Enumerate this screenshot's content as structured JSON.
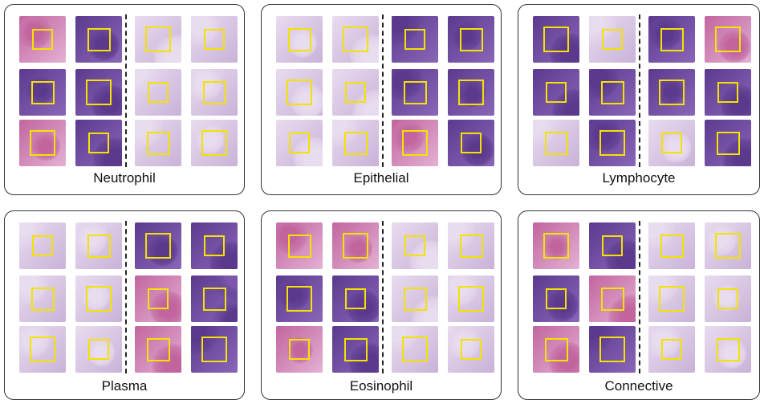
{
  "colors": {
    "box": "#f4e200",
    "panel_border": "#333333",
    "purple": "#6e4aa0",
    "pink": "#c97ab8",
    "pale": "#e6d7ec"
  },
  "panels": [
    {
      "label": "Neutrophil",
      "tones": [
        "pink",
        "purple",
        "pale",
        "pale",
        "purple",
        "purple",
        "pale",
        "pale",
        "pink",
        "purple",
        "pale",
        "pale"
      ]
    },
    {
      "label": "Epithelial",
      "tones": [
        "pale",
        "pale",
        "purple",
        "purple",
        "pale",
        "pale",
        "purple",
        "purple",
        "pale",
        "pale",
        "pink",
        "purple"
      ]
    },
    {
      "label": "Lymphocyte",
      "tones": [
        "purple",
        "pale",
        "purple",
        "pink",
        "purple",
        "purple",
        "purple",
        "purple",
        "pale",
        "purple",
        "pale",
        "purple"
      ]
    },
    {
      "label": "Plasma",
      "tones": [
        "pale",
        "pale",
        "purple",
        "purple",
        "pale",
        "pale",
        "pink",
        "purple",
        "pale",
        "pale",
        "pink",
        "purple"
      ]
    },
    {
      "label": "Eosinophil",
      "tones": [
        "pink",
        "pink",
        "pale",
        "pale",
        "purple",
        "purple",
        "pale",
        "pale",
        "pink",
        "purple",
        "pale",
        "pale"
      ]
    },
    {
      "label": "Connective",
      "tones": [
        "pink",
        "purple",
        "pale",
        "pale",
        "purple",
        "pink",
        "pale",
        "pale",
        "pink",
        "purple",
        "pale",
        "pale"
      ]
    }
  ]
}
